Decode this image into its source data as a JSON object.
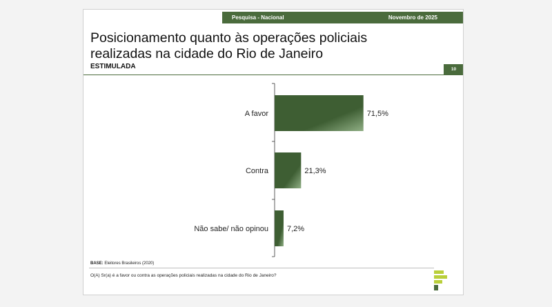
{
  "header": {
    "survey": "Pesquisa - Nacional",
    "date": "Novembro de 2025",
    "page_number": "10"
  },
  "title_line1": "Posicionamento quanto às operações policiais",
  "title_line2": "realizadas na cidade do Rio de Janeiro",
  "subtitle": "ESTIMULADA",
  "footer": {
    "base_label": "BASE:",
    "base_text": "Eleitores Brasileiros (2020)",
    "question": "O(A) Sr(a) é a favor ou contra as operações policiais realizadas na cidade do Rio de Janeiro?"
  },
  "colors": {
    "brand_green": "#4a6b3c",
    "bar_dark": "#3e5e33",
    "bar_light": "#8fae84",
    "logo_light": "#b9cf3a"
  },
  "chart_data": {
    "type": "bar",
    "orientation": "horizontal",
    "title": "Posicionamento quanto às operações policiais realizadas na cidade do Rio de Janeiro",
    "categories": [
      "A favor",
      "Contra",
      "Não sabe/ não opinou"
    ],
    "values": [
      71.5,
      21.3,
      7.2
    ],
    "labels": [
      "71,5%",
      "21,3%",
      "7,2%"
    ],
    "unit": "%",
    "xlim": [
      0,
      100
    ],
    "grid": false,
    "legend": "none"
  }
}
